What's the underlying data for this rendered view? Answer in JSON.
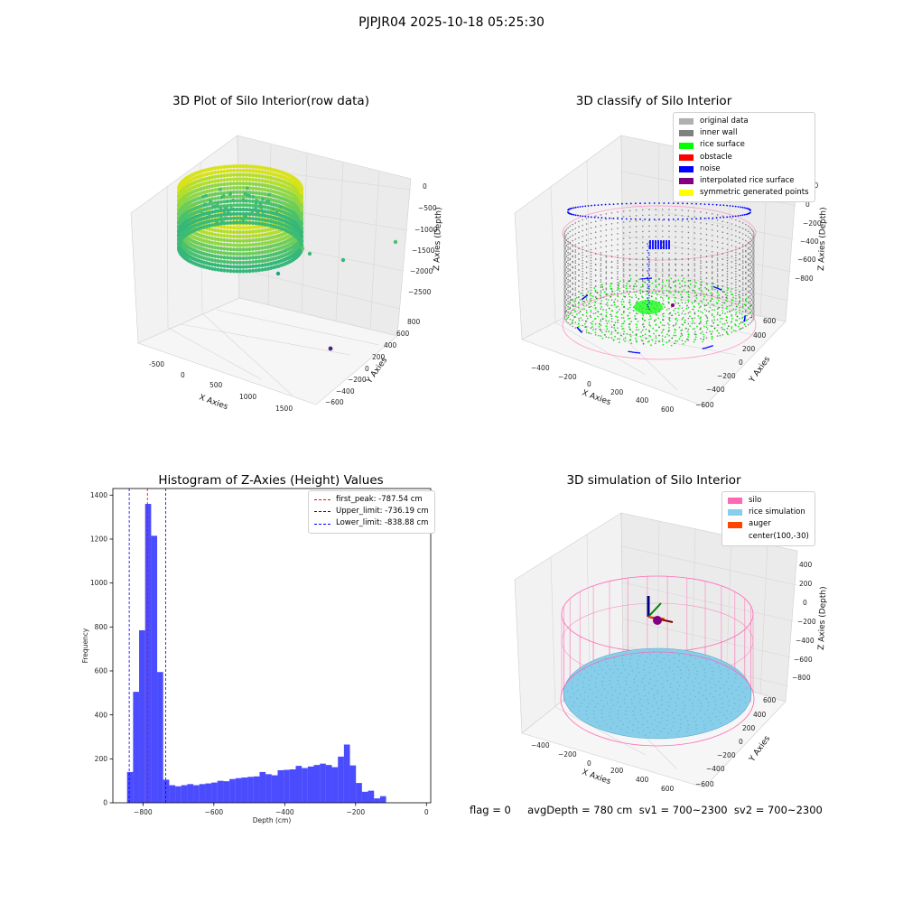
{
  "figure": {
    "suptitle": "PJPJR04 2025-10-18 05:25:30"
  },
  "panel1": {
    "title": "3D Plot of Silo Interior(row data)",
    "xlabel": "X Axies",
    "ylabel": "Y Axies",
    "zlabel": "Z Axies (Depth)",
    "xticks": [
      "-500",
      "0",
      "500",
      "1000",
      "1500"
    ],
    "yticks": [
      "800",
      "600",
      "400",
      "200",
      "0",
      "−200",
      "−400",
      "−600"
    ],
    "zticks": [
      "0",
      "−500",
      "−1000",
      "−1500",
      "−2000",
      "−2500"
    ]
  },
  "panel2": {
    "title": "3D classify of Silo Interior",
    "xlabel": "X Axies",
    "ylabel": "Y Axies",
    "zlabel": "Z Axies (Depth)",
    "xticks": [
      "−400",
      "−200",
      "0",
      "200",
      "400",
      "600"
    ],
    "yticks": [
      "600",
      "400",
      "200",
      "0",
      "−200",
      "−400",
      "−600"
    ],
    "zticks": [
      "200",
      "0",
      "−200",
      "−400",
      "−600",
      "−800"
    ],
    "legend": [
      {
        "label": "original data",
        "color": "#b0b0b0"
      },
      {
        "label": "inner wall",
        "color": "#808080"
      },
      {
        "label": "rice surface",
        "color": "#00ff00"
      },
      {
        "label": "obstacle",
        "color": "#ff0000"
      },
      {
        "label": "noise",
        "color": "#0000ff"
      },
      {
        "label": "interpolated rice surface",
        "color": "#800080"
      },
      {
        "label": "symmetric generated points",
        "color": "#ffff00"
      }
    ]
  },
  "panel3": {
    "title": "Histogram of Z-Axies (Height) Values",
    "legend": [
      {
        "label": "first_peak: -787.54 cm",
        "color": "#ff0000"
      },
      {
        "label": "Upper_limit: -736.19 cm",
        "color": "#0000ff"
      },
      {
        "label": "Lower_limit: -838.88 cm",
        "color": "#0000ff"
      }
    ]
  },
  "panel4": {
    "title": "3D simulation of Silo Interior",
    "xlabel": "X Axies",
    "ylabel": "Y Axies",
    "zlabel": "Z Axies (Depth)",
    "xticks": [
      "−400",
      "−200",
      "0",
      "200",
      "400",
      "600"
    ],
    "yticks": [
      "600",
      "400",
      "200",
      "0",
      "−200",
      "−400",
      "−600"
    ],
    "zticks": [
      "400",
      "200",
      "0",
      "−200",
      "−400",
      "−600",
      "−800"
    ],
    "legend": [
      {
        "label": "silo",
        "color": "#ff69b4"
      },
      {
        "label": "rice simulation",
        "color": "#87ceeb"
      },
      {
        "label": "auger",
        "color": "#ff4500"
      },
      {
        "label": "center(100,-30)",
        "color": ""
      }
    ]
  },
  "status": "flag = 0     avgDepth = 780 cm  sv1 = 700~2300  sv2 = 700~2300",
  "chart_data": [
    {
      "type": "scatter",
      "title": "3D Plot of Silo Interior(row data)",
      "xlabel": "X Axies",
      "ylabel": "Y Axies",
      "zlabel": "Z Axies (Depth)",
      "note_points": "dense ring of points approx x -500..500, y -600..600, z -1000..0 (colormap yellow-green)"
    },
    {
      "type": "scatter",
      "title": "3D classify of Silo Interior",
      "xlabel": "X Axies",
      "ylabel": "Y Axies",
      "zlabel": "Z Axies (Depth)",
      "zlim": [
        -900,
        300
      ]
    },
    {
      "type": "bar",
      "title": "Histogram of Z-Axies (Height) Values",
      "xlabel": "Depth (cm)",
      "ylabel": "Frequency",
      "xlim": [
        -885,
        12
      ],
      "ylim": [
        0,
        1430
      ],
      "xticks": [
        -800,
        -600,
        -400,
        -200,
        0
      ],
      "xtick_labels": [
        "−800",
        "−600",
        "−400",
        "−200",
        "0"
      ],
      "yticks": [
        0,
        200,
        400,
        600,
        800,
        1000,
        1200,
        1400
      ],
      "bin_start": -845,
      "bin_width": 17,
      "values": [
        140,
        505,
        785,
        1360,
        1215,
        595,
        105,
        80,
        75,
        80,
        85,
        80,
        85,
        88,
        92,
        100,
        98,
        108,
        112,
        115,
        118,
        120,
        140,
        130,
        125,
        148,
        150,
        152,
        168,
        158,
        165,
        172,
        178,
        172,
        162,
        210,
        265,
        170,
        90,
        50,
        55,
        20,
        30
      ],
      "vlines": [
        {
          "name": "first_peak",
          "x": -787.54,
          "color": "#ff0000"
        },
        {
          "name": "Upper_limit",
          "x": -736.19,
          "color": "#0000ff"
        },
        {
          "name": "Lower_limit",
          "x": -838.88,
          "color": "#0000ff"
        }
      ],
      "bar_color": "#0000ff"
    },
    {
      "type": "scatter",
      "title": "3D simulation of Silo Interior",
      "xlabel": "X Axies",
      "ylabel": "Y Axies",
      "zlabel": "Z Axies (Depth)"
    }
  ]
}
